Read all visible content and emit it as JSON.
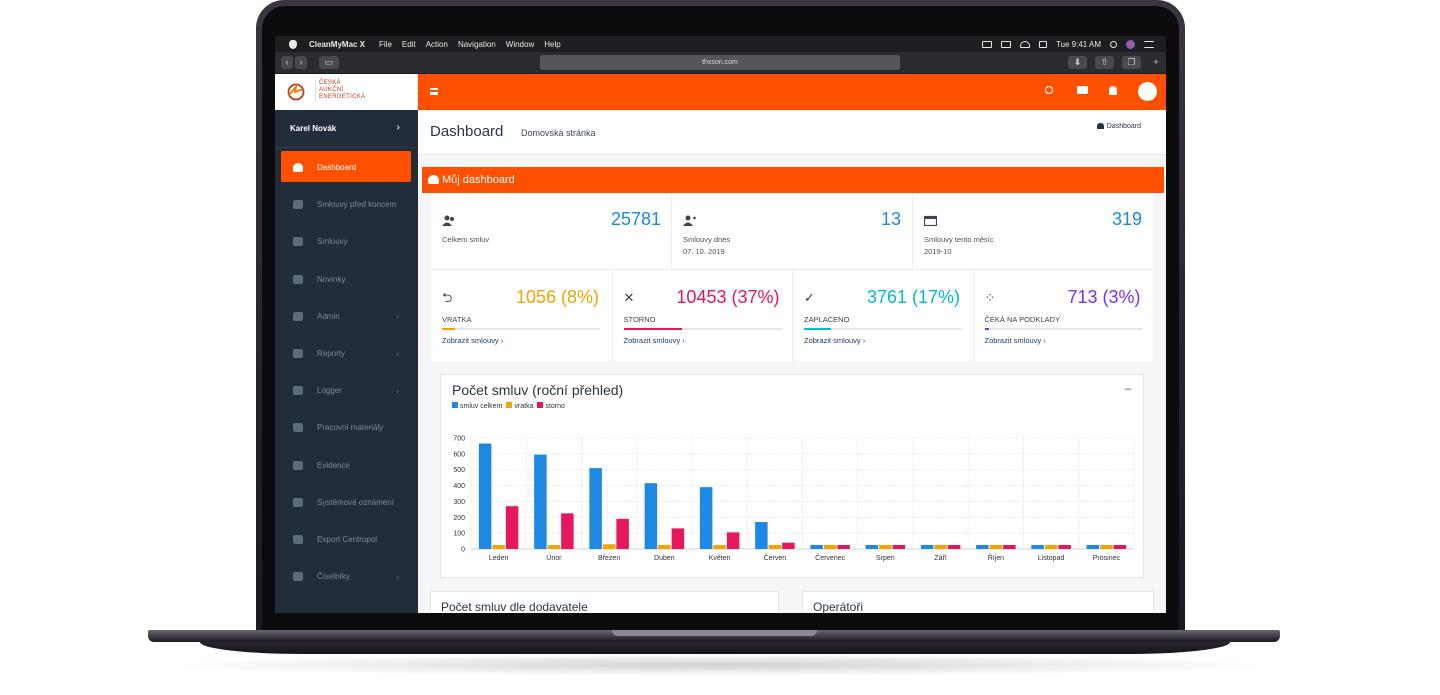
{
  "menubar": {
    "app_name": "CleanMyMac X",
    "menus": [
      "File",
      "Edit",
      "Action",
      "Navigation",
      "Window",
      "Help"
    ],
    "clock": "Tue 9:41 AM"
  },
  "browser": {
    "url": "thxson.com"
  },
  "logo": {
    "lines": [
      "ČESKÁ",
      "AUKČNÍ",
      "ENERGETICKÁ"
    ]
  },
  "sidebar": {
    "user_name": "Karel Novák",
    "items": [
      {
        "label": "Dashboard",
        "icon": "dashboard-icon",
        "active": true,
        "submenu": false
      },
      {
        "label": "Smlouvy před koncem",
        "icon": "users-icon",
        "active": false,
        "submenu": false
      },
      {
        "label": "Smlouvy",
        "icon": "users-icon",
        "active": false,
        "submenu": false
      },
      {
        "label": "Novinky",
        "icon": "newspaper-icon",
        "active": false,
        "submenu": false
      },
      {
        "label": "Admin",
        "icon": "grid-icon",
        "active": false,
        "submenu": true
      },
      {
        "label": "Reporty",
        "icon": "file-chart-icon",
        "active": false,
        "submenu": true
      },
      {
        "label": "Logger",
        "icon": "grid-icon",
        "active": false,
        "submenu": true
      },
      {
        "label": "Pracovní materiály",
        "icon": "file-icon",
        "active": false,
        "submenu": false
      },
      {
        "label": "Evidence",
        "icon": "gear-icon",
        "active": false,
        "submenu": false
      },
      {
        "label": "Systémové oznámení",
        "icon": "envelope-icon",
        "active": false,
        "submenu": false
      },
      {
        "label": "Export Centropol",
        "icon": "file-excel-icon",
        "active": false,
        "submenu": false
      },
      {
        "label": "Číselníky",
        "icon": "grid-icon",
        "active": false,
        "submenu": true
      }
    ]
  },
  "header": {
    "title": "Dashboard",
    "subtitle": "Domovská stránka",
    "breadcrumb": "Dashboard"
  },
  "dashboard_banner": "Můj dashboard",
  "stats": [
    {
      "value": "25781",
      "label": "Celkem smluv",
      "sub": "",
      "icon": "users-icon"
    },
    {
      "value": "13",
      "label": "Smlouvy dnes",
      "sub": "07. 10. 2019",
      "icon": "user-plus-icon"
    },
    {
      "value": "319",
      "label": "Smlouvy tento měsíc",
      "sub": "2019-10",
      "icon": "calendar-icon"
    }
  ],
  "kpis": [
    {
      "value": "1056 (8%)",
      "label": "VRATKA",
      "link": "Zobrazit smlouvy ›",
      "percent": 8,
      "color": "#f5a300",
      "icon": "return-icon",
      "glyph": "⮌"
    },
    {
      "value": "10453 (37%)",
      "label": "STORNO",
      "link": "Zobrazit smlouvy ›",
      "percent": 37,
      "color": "#e8175d",
      "icon": "close-icon",
      "glyph": "✕"
    },
    {
      "value": "3761 (17%)",
      "label": "ZAPLACENO",
      "link": "Zobrazit smlouvy ›",
      "percent": 17,
      "color": "#00bcd4",
      "icon": "check-icon",
      "glyph": "✓"
    },
    {
      "value": "713 (3%)",
      "label": "ČEKÁ NA PODKLADY",
      "link": "Zobrazit smlouvy ›",
      "percent": 3,
      "color": "#7b2ff7",
      "icon": "spinner-icon",
      "glyph": "⁘"
    }
  ],
  "chart_data": {
    "type": "bar",
    "title": "Počet smluv (roční přehled)",
    "categories": [
      "Leden",
      "Únor",
      "Březen",
      "Duben",
      "Květen",
      "Červen",
      "Červenec",
      "Srpen",
      "Září",
      "Říjen",
      "Listopad",
      "Prosinec"
    ],
    "series": [
      {
        "name": "smluv celkem",
        "color": "#1e88e5",
        "values": [
          665,
          595,
          510,
          415,
          390,
          170,
          0,
          0,
          0,
          0,
          0,
          0
        ]
      },
      {
        "name": "vratka",
        "color": "#f5a300",
        "values": [
          25,
          25,
          30,
          0,
          0,
          0,
          0,
          0,
          0,
          0,
          0,
          0
        ]
      },
      {
        "name": "storno",
        "color": "#e8175d",
        "values": [
          270,
          225,
          190,
          130,
          105,
          40,
          0,
          0,
          0,
          0,
          0,
          0
        ]
      }
    ],
    "yticks": [
      "0",
      "100",
      "200",
      "300",
      "400",
      "500",
      "600",
      "700"
    ],
    "ylim": [
      0,
      700
    ],
    "grid": true,
    "legend": "top-left"
  },
  "bottom_cards": {
    "left_title": "Počet smluv dle dodavatele",
    "right_title": "Operátoři"
  }
}
